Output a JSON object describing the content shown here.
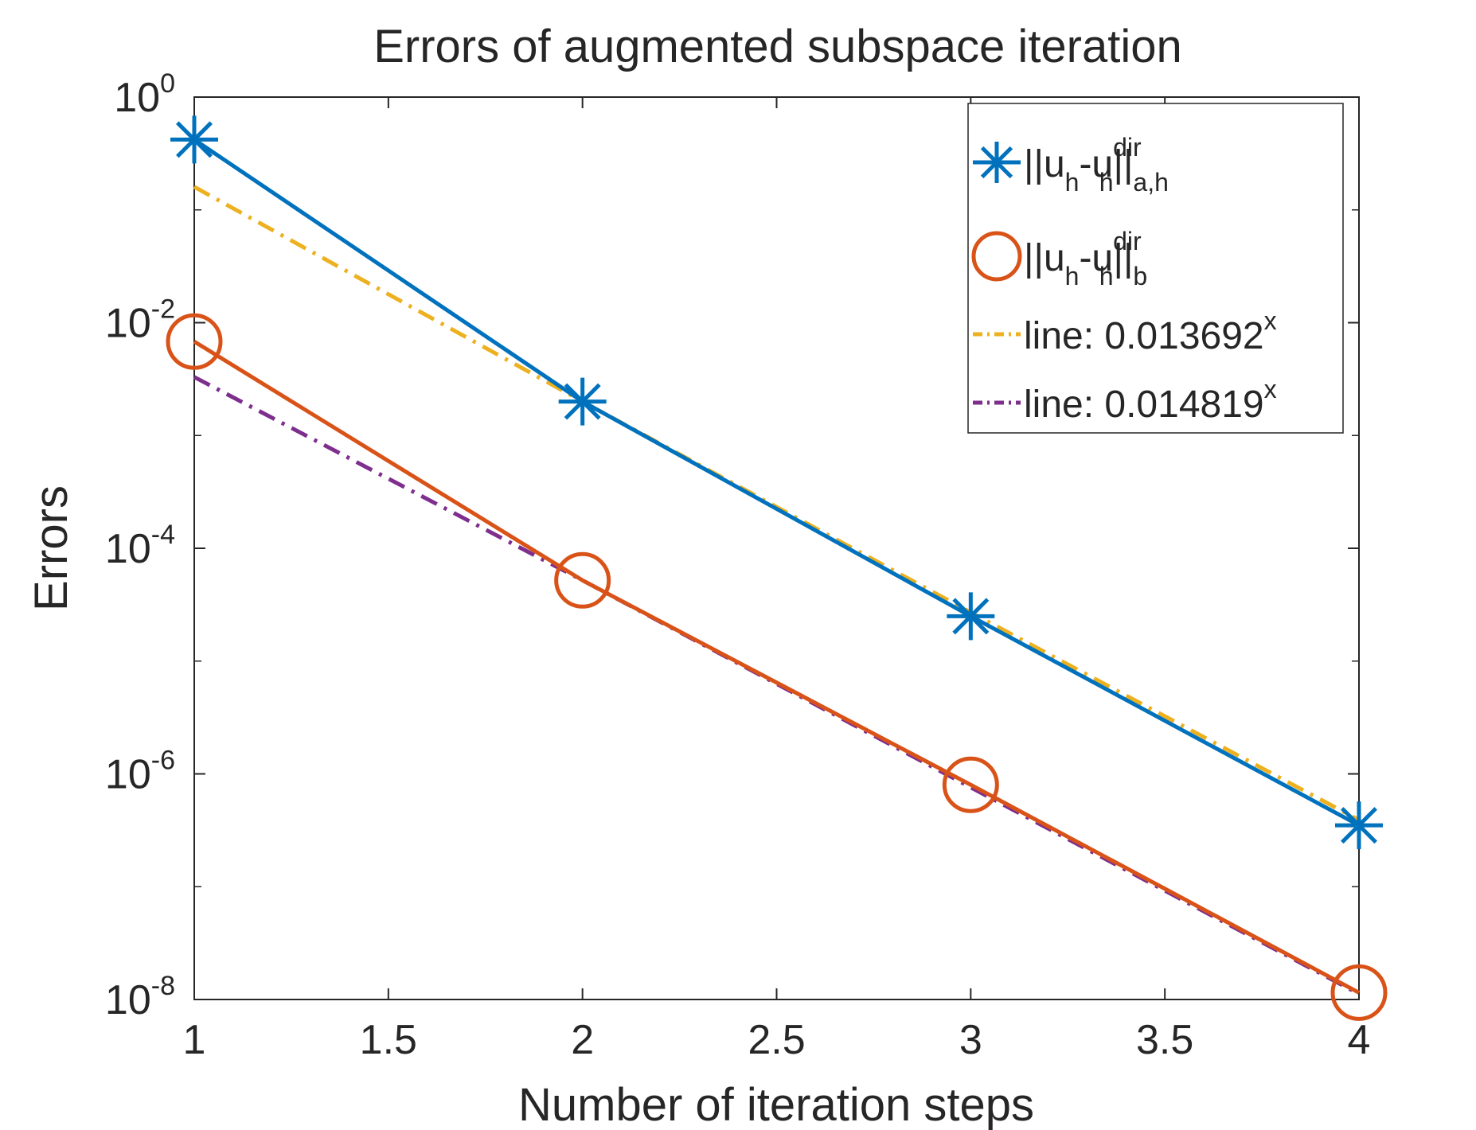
{
  "chart_data": {
    "type": "line",
    "title": "Errors of augmented subspace iteration",
    "xlabel": "Number of iteration steps",
    "ylabel": "Errors",
    "xlim": [
      1,
      4
    ],
    "ylim": [
      1e-08,
      1
    ],
    "yscale": "log",
    "grid": false,
    "legend_position": "top-right",
    "x_ticks": [
      "1",
      "1.5",
      "2",
      "2.5",
      "3",
      "3.5",
      "4"
    ],
    "y_ticks": [
      {
        "base": "10",
        "exp": "0"
      },
      {
        "base": "10",
        "exp": "-2"
      },
      {
        "base": "10",
        "exp": "-4"
      },
      {
        "base": "10",
        "exp": "-6"
      },
      {
        "base": "10",
        "exp": "-8"
      }
    ],
    "legend": [
      {
        "prefix": "||u",
        "sub1": "h",
        "mid": "-u",
        "sup2": "dir",
        "sub2": "h",
        "suffix": "||",
        "sub3": "a,h"
      },
      {
        "prefix": "||u",
        "sub1": "h",
        "mid": "-u",
        "sup2": "dir",
        "sub2": "h",
        "suffix": "||",
        "sub3": "b"
      },
      {
        "text": "line: 0.013692",
        "sup": "x"
      },
      {
        "text": "line: 0.014819",
        "sup": "x"
      }
    ],
    "series": [
      {
        "x": [
          1,
          2,
          3,
          4
        ],
        "y": [
          0.42,
          0.002,
          2.5e-05,
          3.5e-07
        ],
        "color": "#0072BD",
        "marker": "asterisk",
        "dash": "solid"
      },
      {
        "x": [
          1,
          2,
          3,
          4
        ],
        "y": [
          0.0068,
          5.2e-05,
          8e-07,
          1.15e-08
        ],
        "color": "#D95319",
        "marker": "circle",
        "dash": "solid"
      },
      {
        "x": [
          1,
          2,
          3,
          4
        ],
        "y": [
          0.16,
          0.002,
          2.7e-05,
          3.9e-07
        ],
        "color": "#EDB120",
        "marker": "none",
        "dash": "dashdot"
      },
      {
        "x": [
          1,
          2,
          3,
          4
        ],
        "y": [
          0.0033,
          5.2e-05,
          7.6e-07,
          1.12e-08
        ],
        "color": "#7E2F8E",
        "marker": "none",
        "dash": "dashdot"
      }
    ]
  }
}
